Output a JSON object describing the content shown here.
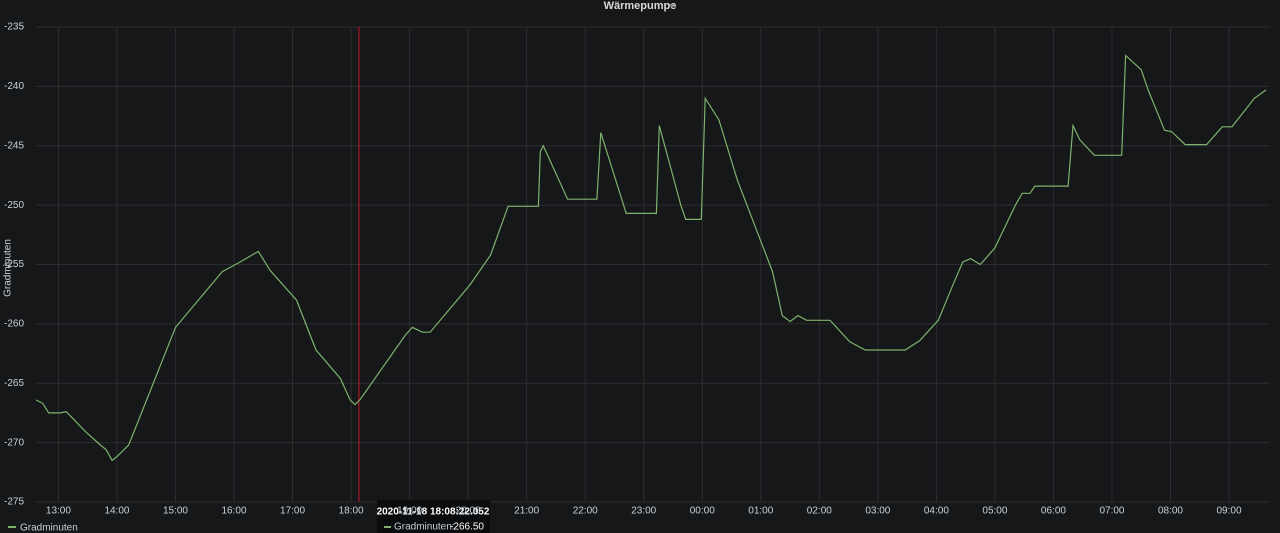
{
  "chart_data": {
    "type": "line",
    "title": "Wärmepumpe",
    "ylabel": "Gradminuten",
    "x": [
      "12:37",
      "12:44",
      "12:50",
      "13:02",
      "13:08",
      "13:14",
      "13:28",
      "13:43",
      "13:49",
      "13:55",
      "14:01",
      "14:12",
      "15:00",
      "15:48",
      "16:06",
      "16:25",
      "16:37",
      "17:04",
      "17:24",
      "17:49",
      "17:59",
      "18:04",
      "18:09",
      "18:56",
      "19:03",
      "19:13",
      "19:21",
      "20:02",
      "20:23",
      "20:41",
      "21:12",
      "21:14",
      "21:17",
      "21:42",
      "22:12",
      "22:16",
      "22:42",
      "23:13",
      "23:16",
      "23:38",
      "23:43",
      "23:59",
      "00:03",
      "00:17",
      "00:36",
      "01:12",
      "01:22",
      "01:30",
      "01:38",
      "01:47",
      "02:11",
      "02:31",
      "02:47",
      "03:28",
      "03:43",
      "04:02",
      "04:17",
      "04:27",
      "04:35",
      "04:45",
      "05:00",
      "05:21",
      "05:28",
      "05:36",
      "05:41",
      "06:15",
      "06:20",
      "06:27",
      "06:42",
      "07:10",
      "07:14",
      "07:30",
      "07:37",
      "07:54",
      "08:01",
      "08:15",
      "08:37",
      "08:53",
      "09:03",
      "09:26",
      "09:38"
    ],
    "series": [
      {
        "name": "Gradminuten",
        "color": "#7eb26d",
        "values": [
          -266.4,
          -266.7,
          -267.5,
          -267.5,
          -267.4,
          -267.9,
          -269.1,
          -270.2,
          -270.6,
          -271.5,
          -271.1,
          -270.2,
          -260.3,
          -255.6,
          -254.8,
          -253.9,
          -255.5,
          -258.0,
          -262.2,
          -264.6,
          -266.4,
          -266.8,
          -266.4,
          -260.9,
          -260.3,
          -260.7,
          -260.7,
          -256.7,
          -254.2,
          -250.1,
          -250.1,
          -245.5,
          -245.0,
          -249.5,
          -249.5,
          -243.9,
          -250.7,
          -250.7,
          -243.3,
          -250.0,
          -251.2,
          -251.2,
          -241.0,
          -242.8,
          -247.9,
          -255.6,
          -259.3,
          -259.8,
          -259.3,
          -259.7,
          -259.7,
          -261.5,
          -262.2,
          -262.2,
          -261.4,
          -259.7,
          -256.7,
          -254.8,
          -254.5,
          -255.0,
          -253.6,
          -250.0,
          -249.0,
          -249.0,
          -248.4,
          -248.4,
          -243.3,
          -244.5,
          -245.8,
          -245.8,
          -237.4,
          -238.6,
          -240.3,
          -243.7,
          -243.8,
          -244.9,
          -244.9,
          -243.4,
          -243.4,
          -241.0,
          -240.3
        ]
      }
    ],
    "xlim": [
      "12:37",
      "09:42"
    ],
    "xticks": [
      "13:00",
      "14:00",
      "15:00",
      "16:00",
      "17:00",
      "18:00",
      "19:00",
      "20:00",
      "21:00",
      "22:00",
      "23:00",
      "00:00",
      "01:00",
      "02:00",
      "03:00",
      "04:00",
      "05:00",
      "06:00",
      "07:00",
      "08:00",
      "09:00"
    ],
    "ylim": [
      -275,
      -235
    ],
    "yticks": [
      -275,
      -270,
      -265,
      -260,
      -255,
      -250,
      -245,
      -240,
      -235
    ],
    "grid": true,
    "tooltip": {
      "time": "2020-11-18 18:08:22.052",
      "series": "Gradminuten:",
      "value": "-266.50"
    }
  }
}
